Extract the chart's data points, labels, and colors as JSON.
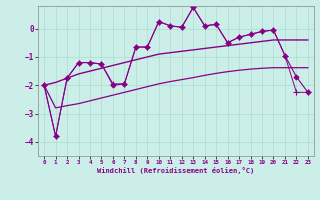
{
  "xlabel": "Windchill (Refroidissement éolien,°C)",
  "background_color": "#cceee8",
  "grid_color": "#aaddcc",
  "line_color": "#880088",
  "xlim": [
    -0.5,
    23.5
  ],
  "ylim": [
    -4.5,
    0.8
  ],
  "xticks": [
    0,
    1,
    2,
    3,
    4,
    5,
    6,
    7,
    8,
    9,
    10,
    11,
    12,
    13,
    14,
    15,
    16,
    17,
    18,
    19,
    20,
    21,
    22,
    23
  ],
  "yticks": [
    -4,
    -3,
    -2,
    -1,
    0
  ],
  "series": [
    {
      "x": [
        0,
        1,
        2,
        3,
        4,
        5,
        6,
        7,
        8,
        9,
        10,
        11,
        12,
        13,
        14,
        15,
        16,
        17,
        18,
        19,
        20,
        21,
        22,
        23
      ],
      "y": [
        -2.0,
        -3.8,
        -1.75,
        -1.2,
        -1.2,
        -1.25,
        -2.0,
        -1.95,
        -0.65,
        -0.65,
        0.25,
        0.1,
        0.05,
        0.75,
        0.1,
        0.15,
        -0.5,
        -0.3,
        -0.2,
        -0.1,
        -0.05,
        -0.95,
        -1.7,
        -2.25
      ],
      "marker": "D",
      "markersize": 2.5,
      "linewidth": 0.8,
      "linestyle": "-"
    },
    {
      "x": [
        0,
        1,
        2,
        3,
        4,
        5,
        6,
        7,
        8,
        9,
        10,
        11,
        12,
        13,
        14,
        15,
        16,
        17,
        18,
        19,
        20,
        21,
        22,
        23
      ],
      "y": [
        -2.0,
        -3.8,
        -1.75,
        -1.2,
        -1.2,
        -1.25,
        -1.95,
        -1.95,
        -0.65,
        -0.65,
        0.25,
        0.1,
        0.05,
        0.75,
        0.1,
        0.15,
        -0.5,
        -0.3,
        -0.2,
        -0.1,
        -0.05,
        -0.95,
        -2.25,
        -2.25
      ],
      "marker": "+",
      "markersize": 4,
      "linewidth": 0.7,
      "linestyle": "-"
    },
    {
      "x": [
        0,
        1,
        2,
        3,
        4,
        5,
        6,
        7,
        8,
        9,
        10,
        11,
        12,
        13,
        14,
        15,
        16,
        17,
        18,
        19,
        20,
        21,
        22,
        23
      ],
      "y": [
        -2.0,
        -1.9,
        -1.75,
        -1.6,
        -1.5,
        -1.4,
        -1.3,
        -1.2,
        -1.1,
        -1.0,
        -0.9,
        -0.85,
        -0.8,
        -0.75,
        -0.7,
        -0.65,
        -0.6,
        -0.55,
        -0.5,
        -0.45,
        -0.4,
        -0.4,
        -0.4,
        -0.4
      ],
      "marker": null,
      "markersize": 0,
      "linewidth": 1.0,
      "linestyle": "-"
    },
    {
      "x": [
        0,
        1,
        2,
        3,
        4,
        5,
        6,
        7,
        8,
        9,
        10,
        11,
        12,
        13,
        14,
        15,
        16,
        17,
        18,
        19,
        20,
        21,
        22,
        23
      ],
      "y": [
        -2.0,
        -2.8,
        -2.72,
        -2.65,
        -2.55,
        -2.45,
        -2.35,
        -2.25,
        -2.15,
        -2.05,
        -1.95,
        -1.87,
        -1.8,
        -1.73,
        -1.65,
        -1.58,
        -1.52,
        -1.47,
        -1.43,
        -1.4,
        -1.38,
        -1.38,
        -1.38,
        -1.38
      ],
      "marker": null,
      "markersize": 0,
      "linewidth": 0.9,
      "linestyle": "-"
    }
  ]
}
